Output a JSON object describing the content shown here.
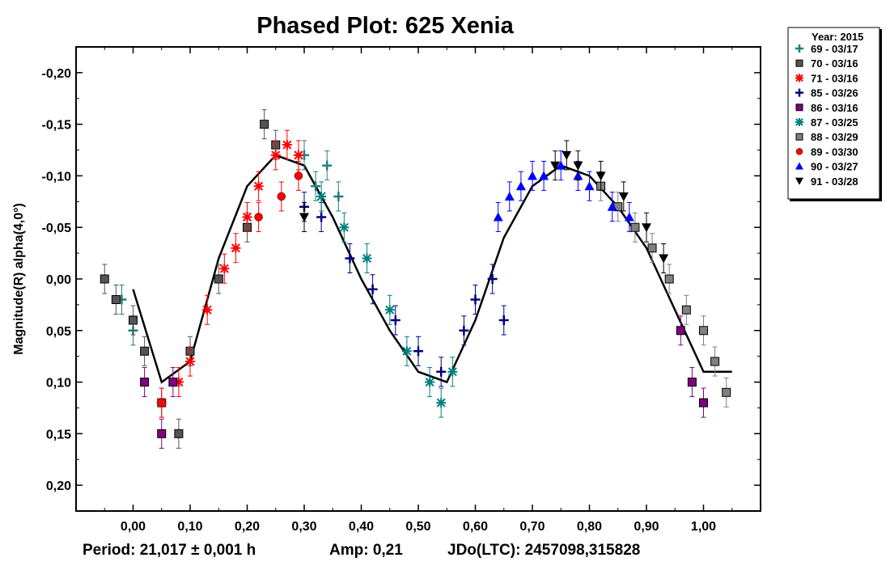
{
  "chart_data": {
    "type": "scatter",
    "title": "Phased Plot: 625 Xenia",
    "xlabel": "",
    "ylabel": "Magnitude(R) alpha(4,0°)",
    "xlim": [
      -0.1,
      1.1
    ],
    "ylim": [
      -0.225,
      0.225
    ],
    "y_inverted": true,
    "grid": false,
    "x_ticks": [
      0.0,
      0.1,
      0.2,
      0.3,
      0.4,
      0.5,
      0.6,
      0.7,
      0.8,
      0.9,
      1.0
    ],
    "x_tick_labels": [
      "0,00",
      "0,10",
      "0,20",
      "0,30",
      "0,40",
      "0,50",
      "0,60",
      "0,70",
      "0,80",
      "0,90",
      "1,00"
    ],
    "y_ticks": [
      -0.2,
      -0.15,
      -0.1,
      -0.05,
      0.0,
      0.05,
      0.1,
      0.15,
      0.2
    ],
    "y_tick_labels": [
      "-0,20",
      "-0,15",
      "-0,10",
      "-0,05",
      "0,00",
      "0,05",
      "0,10",
      "0,15",
      "0,20"
    ],
    "legend": {
      "title": "Year: 2015",
      "placement": "outside-top-right",
      "entries": [
        {
          "label": "69 - 03/17",
          "marker": "plus",
          "color": "#1f7f7f"
        },
        {
          "label": "70 - 03/16",
          "marker": "square",
          "color": "#555555"
        },
        {
          "label": "71 - 03/16",
          "marker": "star",
          "color": "#ff0000"
        },
        {
          "label": "85 - 03/26",
          "marker": "plus",
          "color": "#000080"
        },
        {
          "label": "86 - 03/16",
          "marker": "square",
          "color": "#800080"
        },
        {
          "label": "87 - 03/25",
          "marker": "star",
          "color": "#008080"
        },
        {
          "label": "88 - 03/29",
          "marker": "square",
          "color": "#808080"
        },
        {
          "label": "89 - 03/30",
          "marker": "circle",
          "color": "#ff0000"
        },
        {
          "label": "90 - 03/27",
          "marker": "triangle-up",
          "color": "#0000ff"
        },
        {
          "label": "91 - 03/28",
          "marker": "triangle-down",
          "color": "#000000"
        }
      ]
    },
    "fit_curve": {
      "color": "#000000",
      "x": [
        0.0,
        0.05,
        0.1,
        0.15,
        0.2,
        0.25,
        0.3,
        0.35,
        0.4,
        0.45,
        0.5,
        0.55,
        0.6,
        0.65,
        0.7,
        0.75,
        0.8,
        0.85,
        0.9,
        0.95,
        1.0,
        1.05
      ],
      "y": [
        0.01,
        0.1,
        0.08,
        -0.02,
        -0.09,
        -0.12,
        -0.11,
        -0.06,
        0.0,
        0.05,
        0.09,
        0.1,
        0.04,
        -0.04,
        -0.09,
        -0.11,
        -0.1,
        -0.07,
        -0.03,
        0.03,
        0.09,
        0.09
      ]
    },
    "series": [
      {
        "name": "69 - 03/17",
        "x": [
          -0.02,
          0.0,
          0.3,
          0.32,
          0.34,
          0.36
        ],
        "y": [
          0.02,
          0.05,
          -0.12,
          -0.09,
          -0.11,
          -0.08
        ]
      },
      {
        "name": "70 - 03/16",
        "x": [
          -0.05,
          -0.03,
          0.0,
          0.02,
          0.05,
          0.08,
          0.1,
          0.15,
          0.2,
          0.23,
          0.25
        ],
        "y": [
          0.0,
          0.02,
          0.04,
          0.07,
          0.12,
          0.15,
          0.07,
          0.0,
          -0.05,
          -0.15,
          -0.13
        ]
      },
      {
        "name": "71 - 03/16",
        "x": [
          0.05,
          0.08,
          0.1,
          0.13,
          0.16,
          0.18,
          0.2,
          0.22,
          0.25,
          0.27,
          0.29
        ],
        "y": [
          0.12,
          0.1,
          0.08,
          0.03,
          -0.01,
          -0.03,
          -0.06,
          -0.09,
          -0.12,
          -0.13,
          -0.12
        ]
      },
      {
        "name": "85 - 03/26",
        "x": [
          0.3,
          0.33,
          0.38,
          0.42,
          0.46,
          0.5,
          0.54,
          0.58,
          0.6,
          0.63,
          0.65
        ],
        "y": [
          -0.07,
          -0.06,
          -0.02,
          0.01,
          0.04,
          0.07,
          0.09,
          0.05,
          0.02,
          0.0,
          0.04
        ]
      },
      {
        "name": "86 - 03/16",
        "x": [
          0.02,
          0.05,
          0.07,
          0.96,
          0.98,
          1.0
        ],
        "y": [
          0.1,
          0.15,
          0.1,
          0.05,
          0.1,
          0.12
        ]
      },
      {
        "name": "87 - 03/25",
        "x": [
          0.33,
          0.37,
          0.41,
          0.45,
          0.48,
          0.52,
          0.54,
          0.56
        ],
        "y": [
          -0.08,
          -0.05,
          -0.02,
          0.03,
          0.07,
          0.1,
          0.12,
          0.09
        ]
      },
      {
        "name": "88 - 03/29",
        "x": [
          0.82,
          0.85,
          0.88,
          0.91,
          0.94,
          0.97,
          1.0,
          1.02,
          1.04
        ],
        "y": [
          -0.09,
          -0.07,
          -0.05,
          -0.03,
          0.0,
          0.03,
          0.05,
          0.08,
          0.11
        ]
      },
      {
        "name": "89 - 03/30",
        "x": [
          0.22,
          0.26,
          0.29
        ],
        "y": [
          -0.06,
          -0.08,
          -0.1
        ]
      },
      {
        "name": "90 - 03/27",
        "x": [
          0.64,
          0.66,
          0.68,
          0.7,
          0.72,
          0.75,
          0.78,
          0.8,
          0.84,
          0.87
        ],
        "y": [
          -0.06,
          -0.08,
          -0.09,
          -0.1,
          -0.1,
          -0.11,
          -0.1,
          -0.09,
          -0.07,
          -0.06
        ]
      },
      {
        "name": "91 - 03/28",
        "x": [
          0.3,
          0.74,
          0.76,
          0.78,
          0.82,
          0.86,
          0.9,
          0.93
        ],
        "y": [
          -0.06,
          -0.11,
          -0.12,
          -0.11,
          -0.1,
          -0.08,
          -0.05,
          -0.02
        ]
      }
    ]
  },
  "footer": {
    "period": "Period: 21,017 ± 0,001 h",
    "amp": "Amp: 0,21",
    "jdo": "JDo(LTC): 2457098,315828"
  }
}
